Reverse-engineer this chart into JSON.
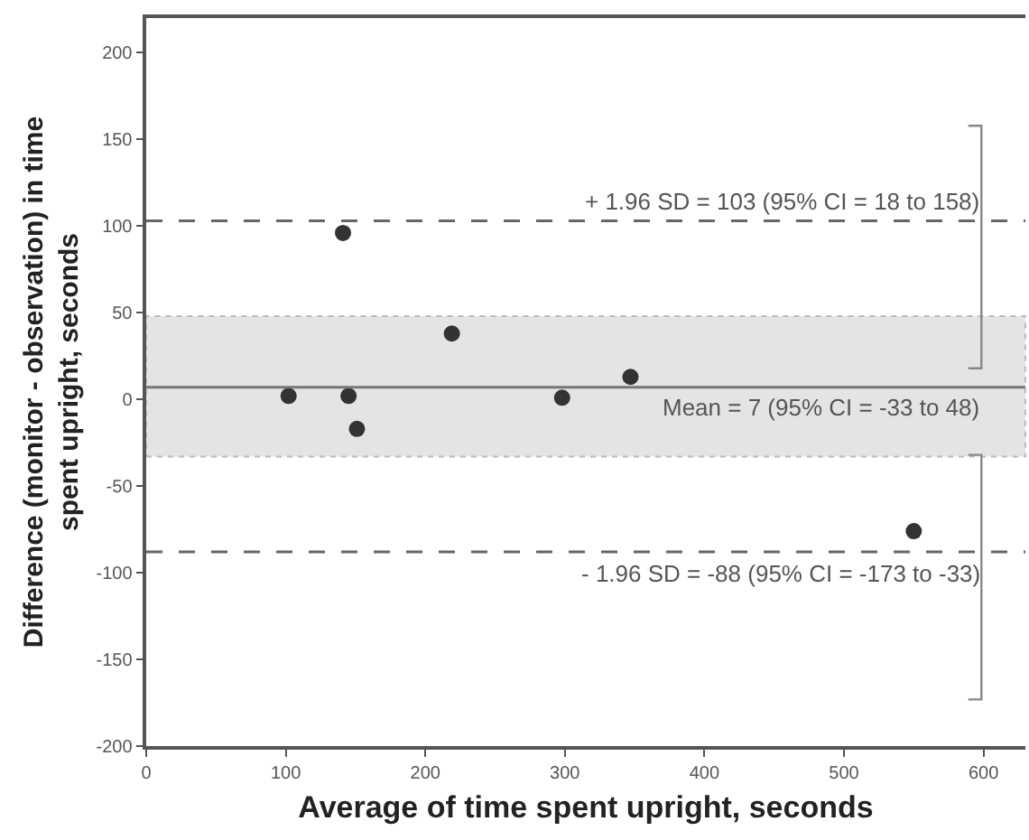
{
  "chart_data": {
    "type": "scatter",
    "xlabel": "Average of time spent upright, seconds",
    "ylabel": "Difference (monitor - observation) in time spent upright, seconds",
    "x": [
      102,
      141,
      145,
      151,
      219,
      298,
      347,
      550
    ],
    "series": [
      {
        "color": "#333333",
        "values": [
          2,
          96,
          2,
          -17,
          38,
          1,
          13,
          -76
        ]
      }
    ],
    "marker": "circle",
    "xlim": [
      0,
      630
    ],
    "xticks": [
      0,
      100,
      200,
      300,
      400,
      500,
      600
    ],
    "ylim": [
      -200,
      220
    ],
    "yticks": [
      -200,
      -150,
      -100,
      -50,
      0,
      50,
      100,
      150,
      200
    ],
    "grid": false,
    "ref_lines": [
      {
        "axis": "y",
        "value": 103,
        "label": "+ 1.96 SD = 103 (95% CI = 18 to 158)",
        "color": "#666666",
        "line_style": "dashed"
      },
      {
        "axis": "y",
        "value": 7,
        "label": "Mean = 7 (95% CI = -33 to 48)",
        "color": "#777777",
        "line_style": "solid"
      },
      {
        "axis": "y",
        "value": -88,
        "label": "- 1.96 SD = -88 (95% CI = -173 to -33)",
        "color": "#666666",
        "line_style": "dashed"
      }
    ],
    "bands": [
      {
        "axis": "y",
        "from": -33,
        "to": 48,
        "color": "#e4e4e4"
      }
    ]
  }
}
